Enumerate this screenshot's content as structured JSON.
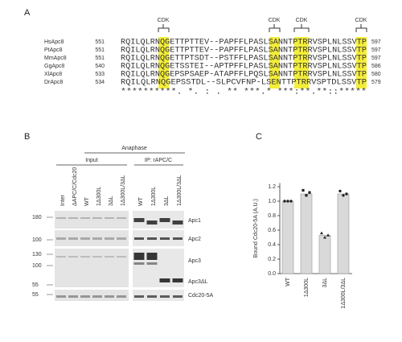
{
  "panel_a": {
    "label": "A",
    "cdk_labels": [
      "CDK",
      "CDK",
      "CDK",
      "CDK"
    ],
    "rows": [
      {
        "name": "HsApc8",
        "start": 551,
        "sequence": "RQILQLRNQGETTPTTEV--PAPFFLPASLSANNTPTRRVSPLNLSSVTP",
        "end": 597
      },
      {
        "name": "PtApc8",
        "start": 551,
        "sequence": "RQILQLRNQGETTPTTEV--PAPFFLPASLSANNTPTRRVSPLNLSSVTP",
        "end": 597
      },
      {
        "name": "MmApc8",
        "start": 551,
        "sequence": "RQILQLRNQGETTPTSDT--PSTFFLPASLSANNTPTRRVSPLNLSSVTP",
        "end": 597
      },
      {
        "name": "GgApc8",
        "start": 540,
        "sequence": "RQILQLRNQGETSSTEI--APTPFFLPASLSANNTPTRRVSPLNLSSVTP",
        "end": 586
      },
      {
        "name": "XlApc8",
        "start": 533,
        "sequence": "RQILQLRNQGEPSPSAEP-ATAPFFLPQSLSANNTPTRRVSPLNLSSVTP",
        "end": 580
      },
      {
        "name": "DrApc8",
        "start": 534,
        "sequence": "RQILQLRNQGEPSSTDL--SLPCVFNP-LSENTTPTRRVSPTDLSSVTP",
        "end": 579
      }
    ],
    "conservation": "**********. *.  :    .  ** ***.* ***:**.**::*****"
  },
  "panel_b": {
    "label": "B",
    "condition": "Anaphase",
    "groups": [
      "Input",
      "IP: rAPC/C"
    ],
    "lanes": [
      "Inter",
      "ΔAPC/C/Cdc20",
      "WT",
      "1Δ300L",
      "3ΔL",
      "1Δ300L/3ΔL",
      "WT",
      "1Δ300L",
      "3ΔL",
      "1Δ300L/3ΔL"
    ],
    "proteins": [
      "Apc1",
      "Apc2",
      "Apc3",
      "Apc3ΔL",
      "Cdc20-5A"
    ],
    "markers": [
      180,
      100,
      130,
      100,
      55,
      55
    ]
  },
  "chart_data": {
    "type": "bar",
    "panel_label": "C",
    "y_label": "Bound Cdc20-5A (A.U.)",
    "categories": [
      "WT",
      "1Δ300L",
      "3ΔL",
      "1Δ300L/3ΔL"
    ],
    "values": [
      1.0,
      1.1,
      0.53,
      1.1
    ],
    "points": [
      [
        1.0,
        1.0,
        1.0
      ],
      [
        1.15,
        1.08,
        1.12
      ],
      [
        0.56,
        0.5,
        0.53
      ],
      [
        1.14,
        1.08,
        1.1
      ]
    ],
    "color": "#d9d9d9",
    "ylim": [
      0,
      1.25
    ],
    "yticks": [
      {
        "value": 0,
        "label": "0.0"
      },
      {
        "value": 0.2,
        "label": "0.2"
      },
      {
        "value": 0.4,
        "label": "0.4"
      },
      {
        "value": 0.6,
        "label": "0.6"
      },
      {
        "value": 0.8,
        "label": "0.8"
      },
      {
        "value": 1.0,
        "label": "1.0"
      },
      {
        "value": 1.2,
        "label": "1.2"
      }
    ]
  }
}
